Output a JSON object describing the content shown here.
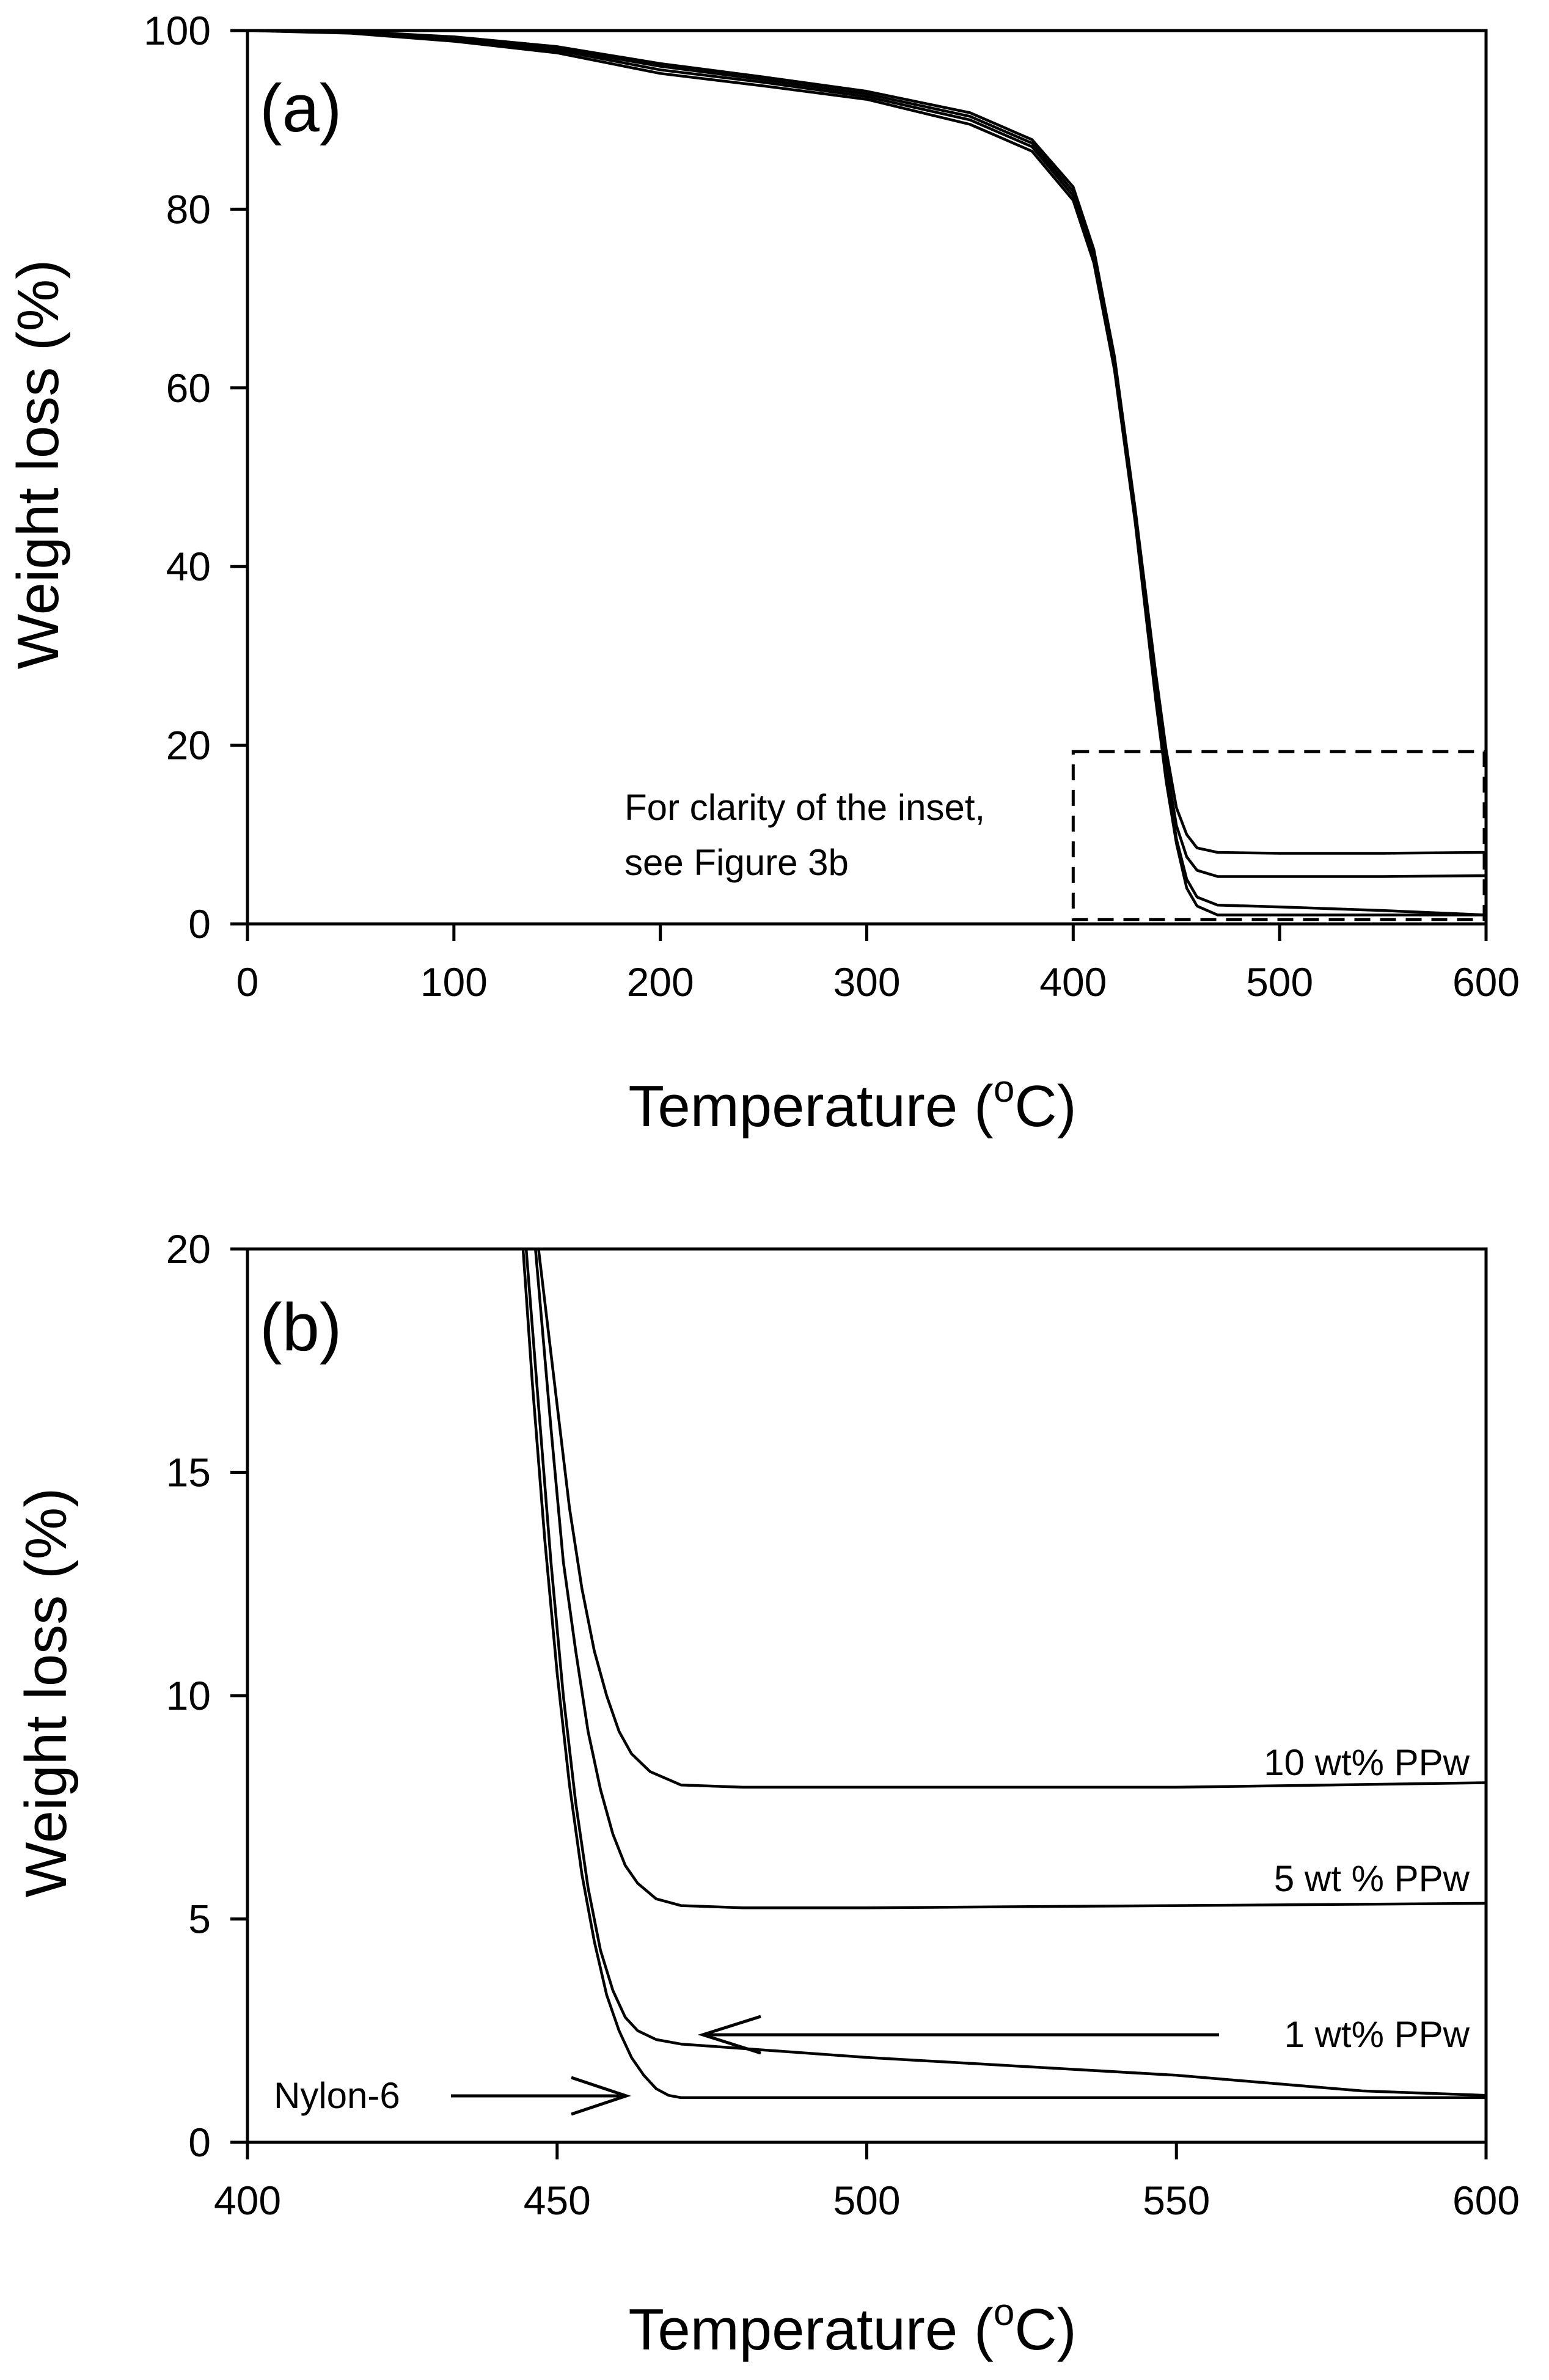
{
  "chart_data": [
    {
      "type": "line",
      "panel_label": "(a)",
      "xlabel": "Temperature (",
      "xlabel_sup": "o",
      "xlabel_unit": "C)",
      "ylabel": "Weight loss (%)",
      "xlim": [
        0,
        600
      ],
      "ylim": [
        0,
        100
      ],
      "xticks": [
        "0",
        "100",
        "200",
        "300",
        "400",
        "500",
        "600"
      ],
      "yticks": [
        "0",
        "20",
        "40",
        "60",
        "80",
        "100"
      ],
      "inset_box": {
        "x": [
          400,
          600
        ],
        "y": [
          0.5,
          19.3
        ]
      },
      "annotation_line1": "For clarity of the inset,",
      "annotation_line2": "see Figure 3b",
      "series": [
        {
          "name": "Nylon-6",
          "x": [
            0,
            50,
            100,
            150,
            200,
            250,
            300,
            350,
            380,
            400,
            410,
            420,
            430,
            440,
            445,
            450,
            455,
            460,
            470,
            500,
            550,
            600
          ],
          "y": [
            100,
            99.7,
            98.8,
            97.5,
            95.2,
            93.8,
            92.3,
            89.5,
            86.5,
            81,
            74,
            62,
            45,
            25,
            16,
            9,
            4,
            2,
            1,
            1,
            1,
            1
          ]
        },
        {
          "name": "1 wt% PPw",
          "x": [
            0,
            50,
            100,
            150,
            200,
            250,
            300,
            350,
            380,
            400,
            410,
            420,
            430,
            440,
            445,
            450,
            455,
            460,
            470,
            500,
            550,
            600
          ],
          "y": [
            100,
            99.8,
            99.0,
            97.8,
            95.6,
            94.2,
            92.6,
            90.0,
            87.0,
            81.5,
            74.5,
            62.5,
            45.5,
            26,
            17,
            9.5,
            5,
            3,
            2.1,
            1.9,
            1.5,
            1.0
          ]
        },
        {
          "name": "5 wt % PPw",
          "x": [
            0,
            50,
            100,
            150,
            200,
            250,
            300,
            350,
            380,
            400,
            410,
            420,
            430,
            440,
            445,
            450,
            455,
            460,
            470,
            500,
            550,
            600
          ],
          "y": [
            100,
            99.8,
            99.2,
            98.0,
            96.0,
            94.5,
            92.9,
            90.4,
            87.4,
            82,
            75,
            63,
            46,
            27,
            18,
            11,
            7.5,
            6,
            5.3,
            5.3,
            5.3,
            5.4
          ]
        },
        {
          "name": "10 wt% PPw",
          "x": [
            0,
            50,
            100,
            150,
            200,
            250,
            300,
            350,
            380,
            400,
            410,
            420,
            430,
            440,
            445,
            450,
            455,
            460,
            470,
            500,
            550,
            600
          ],
          "y": [
            100,
            99.9,
            99.3,
            98.2,
            96.3,
            94.8,
            93.2,
            90.8,
            87.8,
            82.5,
            75.5,
            63.5,
            46.5,
            28,
            19.5,
            13,
            10,
            8.5,
            8.0,
            7.9,
            7.9,
            8.0
          ]
        }
      ]
    },
    {
      "type": "line",
      "panel_label": "(b)",
      "xlabel": "Temperature (",
      "xlabel_sup": "o",
      "xlabel_unit": "C)",
      "ylabel": "Weight loss (%)",
      "xlim": [
        400,
        600
      ],
      "ylim": [
        0,
        20
      ],
      "xticks": [
        "400",
        "450",
        "500",
        "550",
        "600"
      ],
      "yticks": [
        "0",
        "5",
        "10",
        "15",
        "20"
      ],
      "labels": {
        "nylon": "Nylon-6",
        "one": "1 wt% PPw",
        "five": "5 wt % PPw",
        "ten": "10 wt% PPw"
      },
      "series": [
        {
          "name": "Nylon-6",
          "x": [
            444.5,
            446,
            448,
            450,
            452,
            454,
            456,
            458,
            460,
            462,
            464,
            466,
            468,
            470,
            480,
            500,
            550,
            600
          ],
          "y": [
            20,
            17,
            13.5,
            10.5,
            8,
            6,
            4.5,
            3.3,
            2.5,
            1.9,
            1.5,
            1.2,
            1.05,
            1.0,
            1.0,
            1.0,
            1.0,
            1.0
          ]
        },
        {
          "name": "1 wt% PPw",
          "x": [
            445,
            447,
            449,
            451,
            453,
            455,
            457,
            459,
            461,
            463,
            466,
            470,
            480,
            500,
            550,
            580,
            600
          ],
          "y": [
            20,
            16.5,
            13,
            10,
            7.6,
            5.7,
            4.3,
            3.4,
            2.8,
            2.5,
            2.3,
            2.2,
            2.1,
            1.9,
            1.5,
            1.15,
            1.05
          ]
        },
        {
          "name": "5 wt % PPw",
          "x": [
            446.5,
            449,
            451,
            453,
            455,
            457,
            459,
            461,
            463,
            466,
            470,
            480,
            500,
            550,
            600
          ],
          "y": [
            20,
            16,
            13,
            11,
            9.2,
            7.9,
            6.9,
            6.2,
            5.8,
            5.45,
            5.3,
            5.25,
            5.25,
            5.3,
            5.35
          ]
        },
        {
          "name": "10 wt% PPw",
          "x": [
            447,
            450,
            452,
            454,
            456,
            458,
            460,
            462,
            465,
            470,
            480,
            500,
            550,
            600
          ],
          "y": [
            20,
            16.5,
            14.2,
            12.4,
            11,
            10,
            9.2,
            8.7,
            8.3,
            8.0,
            7.95,
            7.95,
            7.95,
            8.05
          ]
        }
      ]
    }
  ]
}
